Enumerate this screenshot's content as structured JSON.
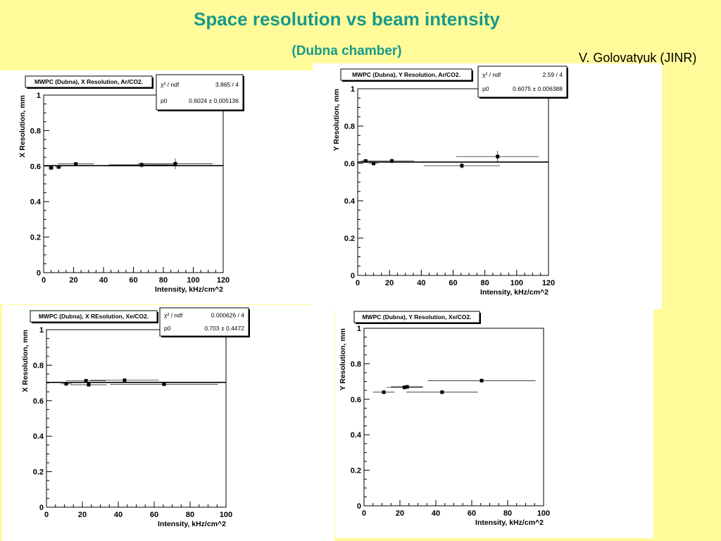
{
  "header": {
    "title": "Space resolution vs beam intensity",
    "subtitle": "(Dubna chamber)",
    "author": "V. Golovatyuk (JINR)"
  },
  "chart_data": [
    {
      "type": "scatter",
      "title": "MWPC (Dubna), X Resolution, Ar/CO2.",
      "xlabel": "Intensity, kHz/cm^2",
      "ylabel": "X Resolution, mm",
      "xlim": [
        0,
        120
      ],
      "ylim": [
        0,
        1
      ],
      "xticks": [
        "0",
        "20",
        "40",
        "60",
        "80",
        "100",
        "120"
      ],
      "yticks": [
        "0",
        "0.2",
        "0.4",
        "0.6",
        "0.8",
        "1"
      ],
      "fit": {
        "chi2_label": "χ² / ndf",
        "chi2_value": "3.865 / 4",
        "p0_label": "p0",
        "p0_value": "0.6024 ± 0.005136",
        "p0": 0.6024
      },
      "points": [
        {
          "x": 5,
          "y": 0.59,
          "xerr": 2,
          "yerr": 0.005
        },
        {
          "x": 10,
          "y": 0.595,
          "xerr": 2,
          "yerr": 0.005
        },
        {
          "x": 21.5,
          "y": 0.612,
          "xerr": 12,
          "yerr": 0.01
        },
        {
          "x": 65.5,
          "y": 0.607,
          "xerr": 22,
          "yerr": 0.015
        },
        {
          "x": 88,
          "y": 0.613,
          "xerr": 25,
          "yerr": 0.03
        }
      ]
    },
    {
      "type": "scatter",
      "title": "MWPC (Dubna), Y Resolution, Ar/CO2.",
      "xlabel": "Intensity, kHz/cm^2",
      "ylabel": "Y Resolution, mm",
      "xlim": [
        0,
        120
      ],
      "ylim": [
        0,
        1
      ],
      "xticks": [
        "0",
        "20",
        "40",
        "60",
        "80",
        "100",
        "120"
      ],
      "yticks": [
        "0",
        "0.2",
        "0.4",
        "0.6",
        "0.8",
        "1"
      ],
      "fit": {
        "chi2_label": "χ² / ndf",
        "chi2_value": "2.59 / 4",
        "p0_label": "p0",
        "p0_value": "0.6075 ± 0.006388",
        "p0": 0.6075
      },
      "points": [
        {
          "x": 5,
          "y": 0.613,
          "xerr": 3,
          "yerr": 0.008
        },
        {
          "x": 10,
          "y": 0.6,
          "xerr": 3,
          "yerr": 0.006
        },
        {
          "x": 21.5,
          "y": 0.613,
          "xerr": 14,
          "yerr": 0.012
        },
        {
          "x": 65.5,
          "y": 0.588,
          "xerr": 24,
          "yerr": 0.015
        },
        {
          "x": 88,
          "y": 0.637,
          "xerr": 26,
          "yerr": 0.03
        }
      ]
    },
    {
      "type": "scatter",
      "title": "MWPC (Dubna), X REsolution, Xe/CO2.",
      "xlabel": "Intensity, kHz/cm^2",
      "ylabel": "X Resolution, mm",
      "xlim": [
        0,
        100
      ],
      "ylim": [
        0,
        1
      ],
      "xticks": [
        "0",
        "20",
        "40",
        "60",
        "80",
        "100"
      ],
      "yticks": [
        "0",
        "0.2",
        "0.4",
        "0.6",
        "0.8",
        "1"
      ],
      "fit": {
        "chi2_label": "χ² / ndf",
        "chi2_value": "0.000626 / 4",
        "p0_label": "p0",
        "p0_value": "0.703 ± 0.4472",
        "p0": 0.703
      },
      "points": [
        {
          "x": 11,
          "y": 0.695,
          "xerr": 3,
          "yerr": 0.005
        },
        {
          "x": 22,
          "y": 0.712,
          "xerr": 11,
          "yerr": 0.006
        },
        {
          "x": 23.5,
          "y": 0.69,
          "xerr": 10,
          "yerr": 0.005
        },
        {
          "x": 43.5,
          "y": 0.715,
          "xerr": 19,
          "yerr": 0.006
        },
        {
          "x": 65.5,
          "y": 0.693,
          "xerr": 30,
          "yerr": 0.006
        }
      ]
    },
    {
      "type": "scatter",
      "title": "MWPC (Dubna), Y Resolution, Xe/CO2.",
      "xlabel": "Intensity, kHz/cm^2",
      "ylabel": "Y Resolution, mm",
      "xlim": [
        0,
        100
      ],
      "ylim": [
        0,
        1
      ],
      "xticks": [
        "0",
        "20",
        "40",
        "60",
        "80",
        "100"
      ],
      "yticks": [
        "0",
        "0.2",
        "0.4",
        "0.6",
        "0.8",
        "1"
      ],
      "points": [
        {
          "x": 11,
          "y": 0.64,
          "xerr": 6,
          "yerr": 0.004
        },
        {
          "x": 22.5,
          "y": 0.667,
          "xerr": 10,
          "yerr": 0.004
        },
        {
          "x": 24,
          "y": 0.67,
          "xerr": 9,
          "yerr": 0.004
        },
        {
          "x": 43.5,
          "y": 0.64,
          "xerr": 20,
          "yerr": 0.004
        },
        {
          "x": 65.5,
          "y": 0.705,
          "xerr": 30,
          "yerr": 0.005
        }
      ]
    }
  ]
}
